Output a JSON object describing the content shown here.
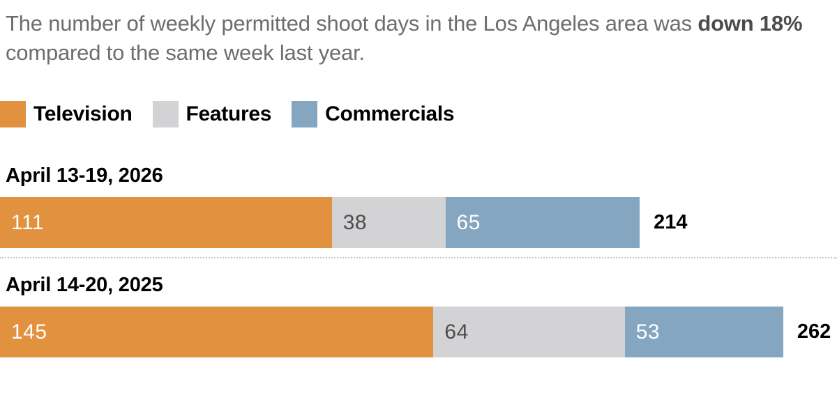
{
  "header": {
    "prefix": "The number of weekly permitted shoot days in the Los Angeles area was ",
    "highlight": "down 18%",
    "suffix": " compared to the same week last year."
  },
  "chart_data": {
    "type": "bar",
    "orientation": "horizontal",
    "stacked": true,
    "title": "The number of weekly permitted shoot days in the Los Angeles area was down 18% compared to the same week last year.",
    "categories": [
      "April 13-19, 2026",
      "April 14-20, 2025"
    ],
    "series": [
      {
        "name": "Television",
        "color": "#E2913E",
        "value_label_color": "#ffffff",
        "values": [
          111,
          145
        ]
      },
      {
        "name": "Features",
        "color": "#D3D3D5",
        "value_label_color": "#4d4d4d",
        "values": [
          38,
          64
        ]
      },
      {
        "name": "Commercials",
        "color": "#84A6C0",
        "value_label_color": "#ffffff",
        "values": [
          65,
          53
        ]
      }
    ],
    "totals": [
      214,
      262
    ],
    "xmax": 280,
    "legend_position": "top",
    "grid": false
  }
}
